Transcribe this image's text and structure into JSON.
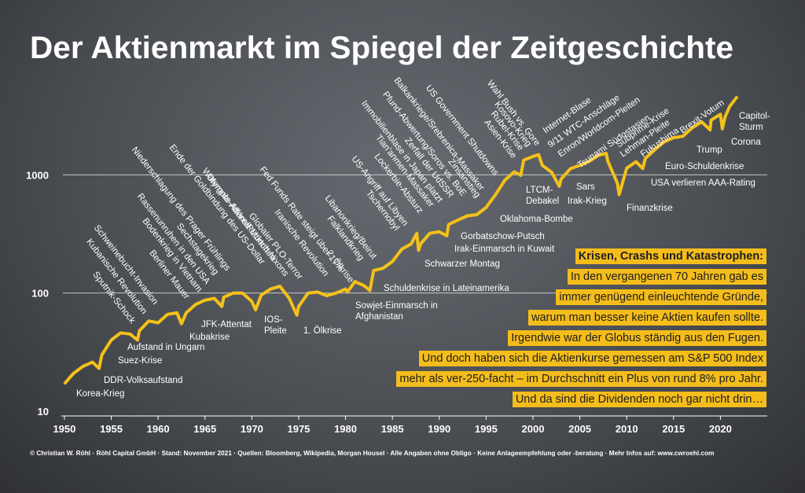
{
  "chart_data": {
    "type": "line",
    "title": "Der Aktienmarkt im Spiegel der Zeitgeschichte",
    "log_scale": true,
    "grid": true,
    "color": "#f4c11a",
    "xlim": [
      1949,
      2025
    ],
    "xticks": [
      1950,
      1955,
      1960,
      1965,
      1970,
      1975,
      1980,
      1985,
      1990,
      1995,
      2000,
      2005,
      2010,
      2015,
      2020
    ],
    "ylim": [
      10,
      10000
    ],
    "yticks": [
      10,
      100,
      1000
    ],
    "x": [
      1950,
      1950.5,
      1951,
      1952,
      1953,
      1953.7,
      1954,
      1955,
      1956,
      1957,
      1957.8,
      1958,
      1959,
      1960,
      1961,
      1962,
      1962.5,
      1963,
      1964,
      1965,
      1966,
      1966.8,
      1967,
      1968,
      1969,
      1970,
      1970.4,
      1971,
      1972,
      1973,
      1974,
      1974.8,
      1975,
      1976,
      1977,
      1978,
      1979,
      1980,
      1980.2,
      1981,
      1982,
      1982.6,
      1983,
      1984,
      1985,
      1986,
      1987,
      1987.6,
      1987.8,
      1988,
      1989,
      1990,
      1990.8,
      1991,
      1992,
      1993,
      1994,
      1995,
      1996,
      1997,
      1998,
      1998.7,
      1999,
      2000,
      2000.6,
      2001,
      2002,
      2002.8,
      2003,
      2004,
      2005,
      2006,
      2007,
      2007.8,
      2008,
      2009,
      2009.2,
      2010,
      2011,
      2011.7,
      2012,
      2013,
      2014,
      2015,
      2016,
      2017,
      2018,
      2018.9,
      2019,
      2020,
      2020.2,
      2020.5,
      2021,
      2021.8
    ],
    "values": [
      17,
      19,
      21,
      24,
      26,
      23,
      30,
      40,
      46,
      45,
      40,
      48,
      58,
      56,
      66,
      68,
      55,
      68,
      80,
      87,
      90,
      77,
      92,
      100,
      100,
      85,
      72,
      96,
      108,
      114,
      90,
      65,
      77,
      100,
      102,
      95,
      100,
      108,
      102,
      125,
      115,
      105,
      155,
      162,
      185,
      235,
      260,
      320,
      230,
      260,
      320,
      330,
      305,
      380,
      415,
      450,
      460,
      530,
      680,
      900,
      1060,
      990,
      1330,
      1430,
      1480,
      1200,
      1050,
      800,
      920,
      1130,
      1200,
      1300,
      1460,
      1520,
      1300,
      850,
      680,
      1140,
      1290,
      1130,
      1380,
      1630,
      1900,
      2060,
      2120,
      2500,
      2800,
      2400,
      2900,
      3250,
      2450,
      3100,
      3800,
      4600
    ],
    "annotations": [
      "Korea-Krieg",
      "DDR-Volksaufstand",
      "Suez-Krise",
      "Aufstand in Ungarn",
      "Sputnik-Schock",
      "Kubanische Revolution",
      "Schweinebucht-Invasion",
      "Berliner Mauer",
      "Bodenkrieg in Vietnam",
      "Rassenunruhen in den USA",
      "Kubakrise",
      "JFK-Attentat",
      "Sechstagekrieg",
      "Niederschlagung des Prager Frühlings",
      "Ende der Goldbindung des US-Dollar",
      "Olympia-Attentat München",
      "Watergate-Affäre/Rücktritt Nixons",
      [
        "IOS-",
        "Pleite"
      ],
      "1. Ölkrise",
      "Globaler PLO-Terror",
      "Iranische Revolution",
      "Fed Funds Rate steigt über 17%",
      "2. Ölkrise",
      [
        "Sowjet-Einmarsch in",
        "Afghanistan"
      ],
      "Falklandkrieg",
      "Libanonkrieg/Beirut",
      "Schuldenkrise in Lateinamerika",
      "Tschernobyl",
      "US-Angriff auf Libyen",
      "Schwarzer Montag",
      "Lockerbie-Absturz",
      "Tian'anmen-Massaker",
      "Immobilienblase in Japan platzt",
      "Irak-Einmarsch in Kuwait",
      "Zerfall der UdSSR",
      "Gorbatschow-Putsch",
      "Pfund-Abwertung/Soros vs. BoE",
      "Balkankriege/Srebrenica-Massaker",
      "Zinsanstieg",
      "US Government Shutdowns",
      "Oklahoma-Bombe",
      "Asien-Krise",
      "Rubel-Krise",
      "Kosovo-Krieg",
      [
        "LTCM-",
        "Debakel"
      ],
      "Wahl Bush vs. Gore",
      "Internet-Blase",
      "9/11 WTC-Anschläge",
      "Enron/Worldcom-Pleiten",
      "Sars",
      "Irak-Krieg",
      "Tsunami Südostasien",
      "Subprime-Krise",
      "Lehman-Pleite",
      "Finanzkrise",
      "USA verlieren AAA-Rating",
      "Fukushima",
      "Euro-Schuldenkrise",
      "Brexit-Votum",
      "Trump",
      "Corona",
      [
        "Capitol-",
        "Sturm"
      ]
    ],
    "info_box": {
      "heading": "Krisen, Crashs und Katastrophen:",
      "lines": [
        "In den vergangenen 70 Jahren gab es",
        "immer genügend einleuchtende Gründe,",
        "warum man besser keine Aktien kaufen sollte.",
        "Irgendwie war der Globus ständig aus den Fugen.",
        "Und doch haben sich die Aktienkurse gemessen am S&P 500 Index",
        "mehr als ver-250-facht – im Durchschnitt ein Plus von rund 8% pro Jahr.",
        "Und da sind die Dividenden noch gar nicht drin…"
      ]
    },
    "footer": "© Christian W. Röhl · Röhl Capital GmbH · Stand: November 2021 · Quellen: Bloomberg, Wikipedia, Morgan Housel · Alle Angaben ohne Obligo · Keine Anlageempfehlung oder -beratung · Mehr Infos auf: www.cwroehl.com"
  }
}
